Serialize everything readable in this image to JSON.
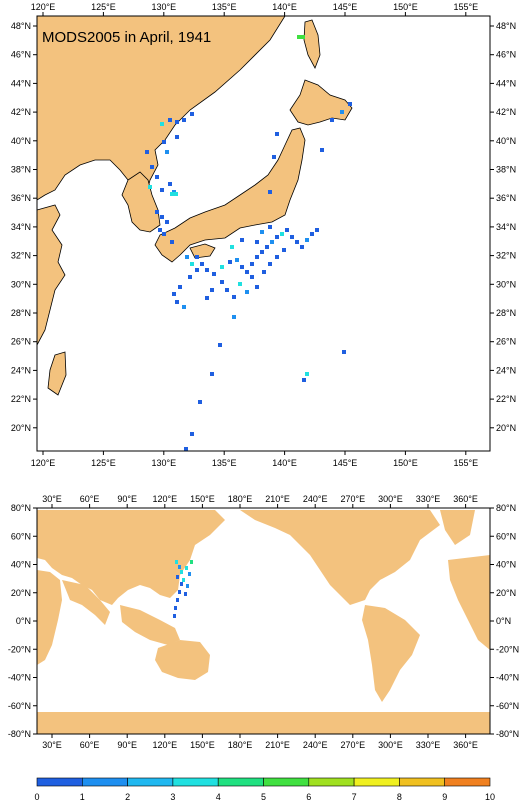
{
  "map_top": {
    "title": "MODS2005 in April, 1941",
    "lon_labels": [
      "120°E",
      "125°E",
      "130°E",
      "135°E",
      "140°E",
      "145°E",
      "150°E",
      "155°E"
    ],
    "lat_labels": [
      "48°N",
      "46°N",
      "44°N",
      "42°N",
      "40°N",
      "38°N",
      "36°N",
      "34°N",
      "32°N",
      "30°N",
      "28°N",
      "26°N",
      "24°N",
      "22°N",
      "20°N"
    ],
    "land_color": "#f3c27e"
  },
  "map_bottom": {
    "lon_labels": [
      "30°E",
      "60°E",
      "90°E",
      "120°E",
      "150°E",
      "180°E",
      "210°E",
      "240°E",
      "270°E",
      "300°E",
      "330°E",
      "360°E"
    ],
    "lat_labels": [
      "80°N",
      "60°N",
      "40°N",
      "20°N",
      "0°N",
      "-20°N",
      "-40°N",
      "-60°N",
      "-80°N"
    ]
  },
  "colorbar": {
    "labels": [
      "0",
      "1",
      "2",
      "3",
      "4",
      "5",
      "6",
      "7",
      "8",
      "9",
      "10"
    ],
    "colors": [
      "#1f5fe0",
      "#1e8ff0",
      "#20b8f0",
      "#20e0e0",
      "#20e080",
      "#40e040",
      "#a0e020",
      "#f0f020",
      "#f0c020",
      "#f08020",
      "#f04010"
    ]
  }
}
